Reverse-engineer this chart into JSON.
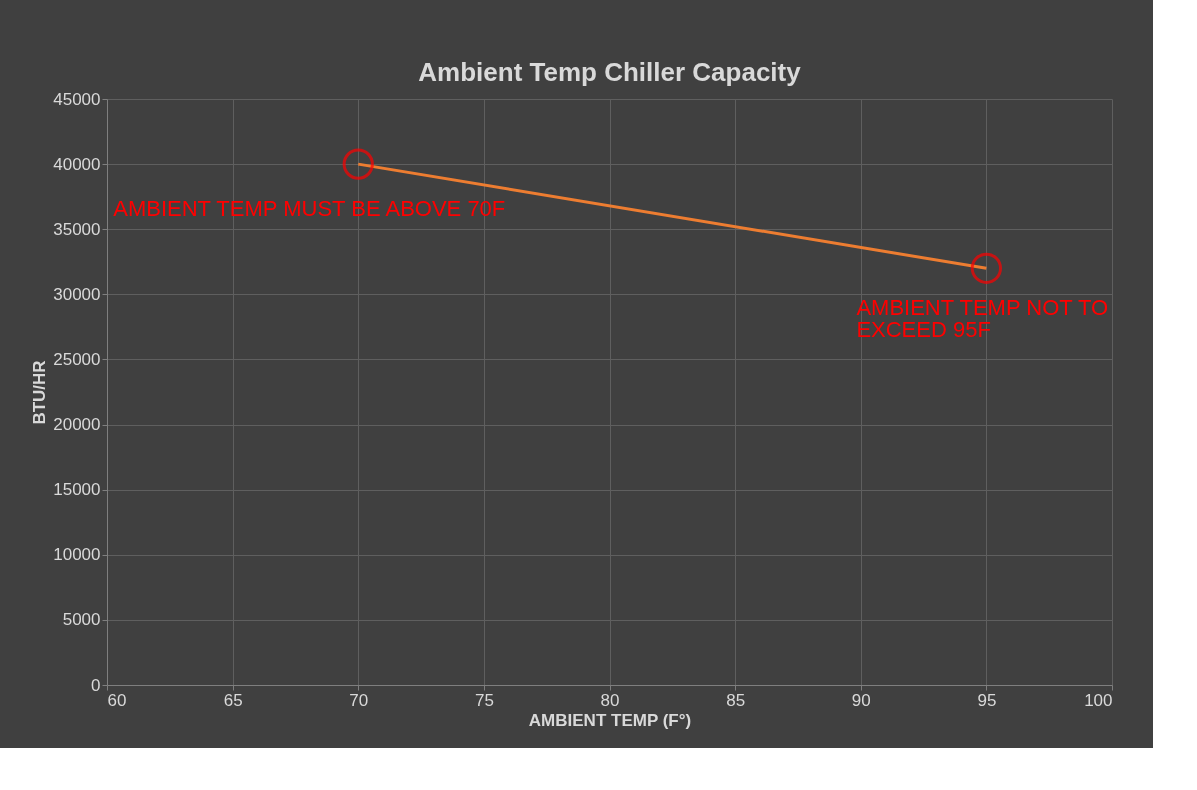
{
  "chart_data": {
    "type": "line",
    "title": "Ambient Temp Chiller Capacity",
    "xlabel": "AMBIENT TEMP (F°)",
    "ylabel": "BTU/HR",
    "x": [
      70,
      95
    ],
    "series": [
      {
        "color": "#ed7d31",
        "values": [
          40000,
          32000
        ]
      }
    ],
    "xlim": [
      60,
      100
    ],
    "xticks": [
      60,
      65,
      70,
      75,
      80,
      85,
      90,
      95,
      100
    ],
    "ylim": [
      0,
      45000
    ],
    "yticks": [
      0,
      5000,
      10000,
      15000,
      20000,
      25000,
      30000,
      35000,
      40000,
      45000
    ],
    "grid": true,
    "marker": "circle",
    "annotations": [
      {
        "text": "AMBIENT TEMP MUST BE ABOVE 70F",
        "x": 70,
        "y": 40000
      },
      {
        "text": "AMBIENT TEMP NOT TO EXCEED 95F",
        "x": 95,
        "y": 32000
      }
    ]
  }
}
